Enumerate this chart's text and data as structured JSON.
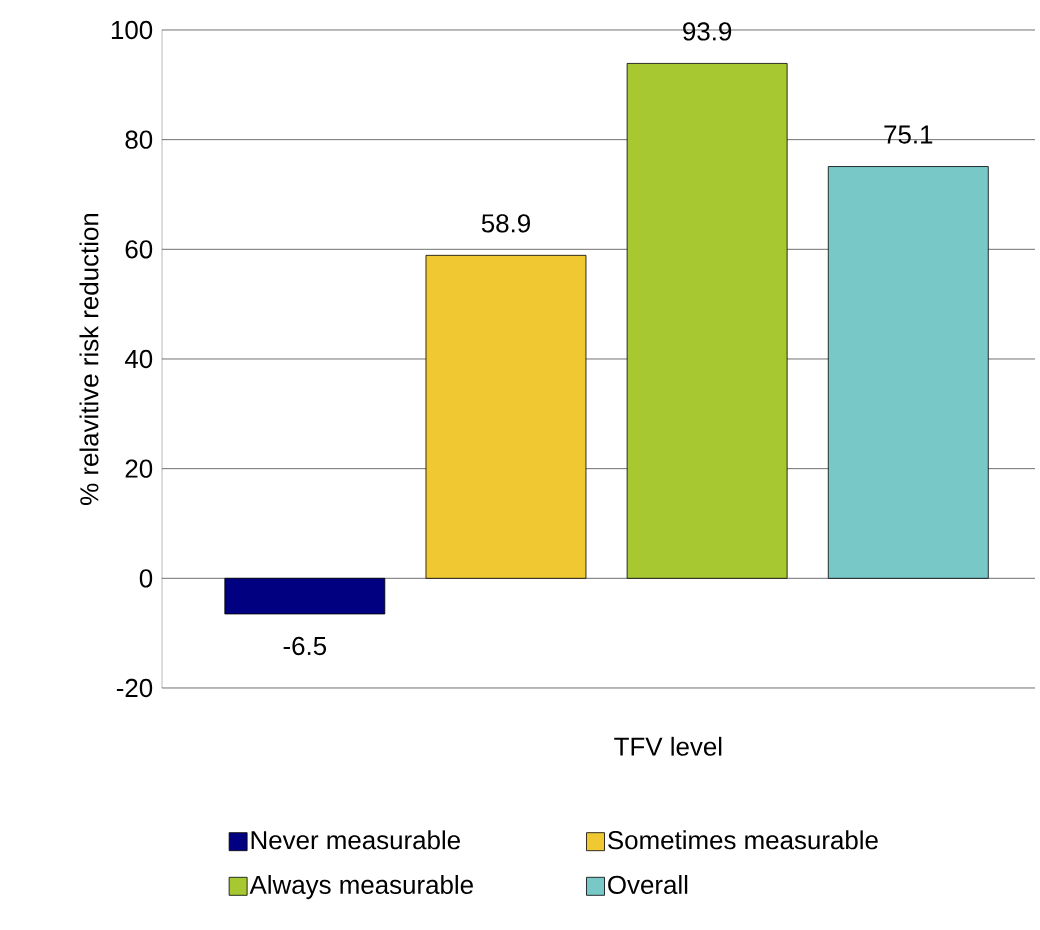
{
  "chart_data": {
    "type": "bar",
    "xlabel": "TFV level",
    "ylabel": "% relavitive risk reduction",
    "categories": [
      null,
      null,
      null,
      null
    ],
    "series": [
      {
        "name": "Never measurable",
        "color": "#000080",
        "values": [
          -6.5,
          null,
          null,
          null
        ]
      },
      {
        "name": "Sometimes measurable",
        "color": "#f0c832",
        "values": [
          null,
          58.9,
          null,
          null
        ]
      },
      {
        "name": "Always measurable",
        "color": "#a8c832",
        "values": [
          null,
          null,
          93.9,
          null
        ]
      },
      {
        "name": "Overall",
        "color": "#78c8c8",
        "values": [
          null,
          null,
          null,
          75.1
        ]
      }
    ],
    "ylim": [
      -20,
      100
    ],
    "yticks": [
      -20,
      0,
      20,
      40,
      60,
      80,
      100
    ],
    "grid": "y",
    "legend": "bottom",
    "data_labels": true
  }
}
